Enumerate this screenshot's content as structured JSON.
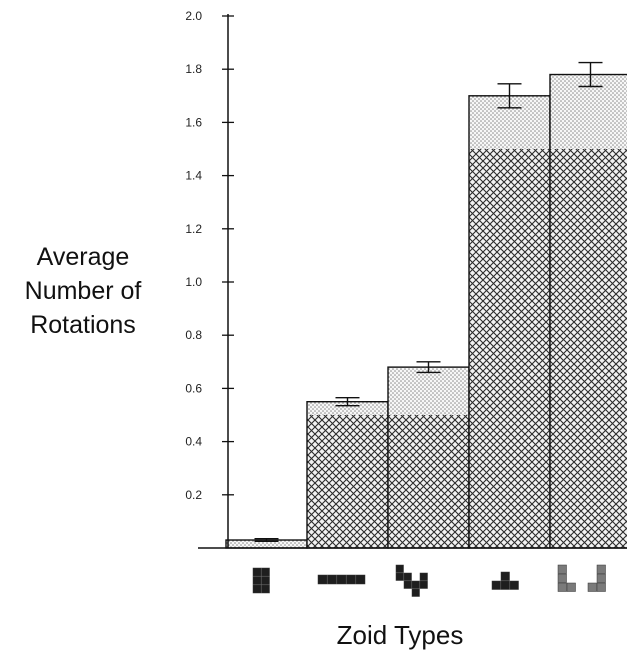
{
  "chart_data": {
    "type": "bar",
    "stacked": true,
    "xlabel": "Zoid Types",
    "ylabel_lines": [
      "Average",
      "Number of",
      "Rotations"
    ],
    "ylim": [
      0,
      2.0
    ],
    "yticks": [
      "0.2",
      "0.4",
      "0.6",
      "0.8",
      "1.0",
      "1.2",
      "1.4",
      "1.6",
      "1.8",
      "2.0"
    ],
    "categories": [
      "square",
      "line",
      "S/Z",
      "T",
      "L/J"
    ],
    "series": [
      {
        "values": [
          0.0,
          0.5,
          0.5,
          1.5,
          1.5
        ]
      },
      {
        "values": [
          0.03,
          0.05,
          0.18,
          0.2,
          0.28
        ]
      }
    ],
    "totals": [
      0.03,
      0.55,
      0.68,
      1.7,
      1.78
    ],
    "error": [
      0.005,
      0.015,
      0.02,
      0.045,
      0.045
    ],
    "colors": {
      "axis": "#111111",
      "hatch": "#2b2b2b",
      "dot": "#888888",
      "icon_dark": "#1e1e1e",
      "icon_light": "#7a7a7a"
    },
    "icon_names": [
      "square-zoid-icon",
      "line-zoid-icon",
      "s-z-zoid-icon",
      "t-zoid-icon",
      "l-j-zoid-icon"
    ]
  }
}
